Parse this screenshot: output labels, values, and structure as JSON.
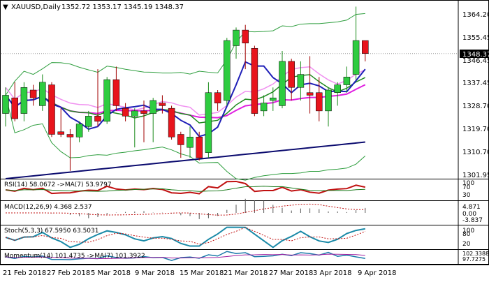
{
  "window": {
    "symbol_label": "XAUUSD,Daily",
    "ohlc_text": "1352.72 1353.17 1345.19 1348.37",
    "menu_glyph": "▼"
  },
  "main_chart": {
    "price_ticks": [
      "1364.20",
      "1355.45",
      "1346.45",
      "1337.45",
      "1328.70",
      "1319.70",
      "1310.70",
      "1301.95"
    ],
    "current_price_label": "1348.37",
    "colors": {
      "bull": "#2ecc40",
      "bear": "#e8141c",
      "ma_fast": "#1f1fb8",
      "ma_slow": "#0a0a6e",
      "bands": "#2e9e3e",
      "ma_green": "#1f8a1f",
      "ma_magenta": "#e020e0",
      "ma_pink": "#f090f0",
      "grid": "#d8d8d8"
    }
  },
  "indicators": {
    "rsi": {
      "label": "RSI(14) 58.0672 ->MA(7) 53.9797",
      "ticks": [
        "100",
        "70",
        "30"
      ]
    },
    "macd": {
      "label": "MACD(12,26,9) 4.368 2.537",
      "ticks": [
        "4.871",
        "0.00",
        "-3.837"
      ]
    },
    "stoch": {
      "label": "Stoch(5,3,3) 67.5950 63.5031",
      "ticks": [
        "100",
        "80",
        "20"
      ]
    },
    "momentum": {
      "label": "Momentum(14) 101.4735 ->MA(7) 101.3922",
      "ticks": [
        "102.3388",
        "97.7275"
      ]
    }
  },
  "time_axis": {
    "labels": [
      "21 Feb 2018",
      "27 Feb 2018",
      "5 Mar 2018",
      "9 Mar 2018",
      "15 Mar 2018",
      "21 Mar 2018",
      "27 Mar 2018",
      "3 Apr 2018",
      "9 Apr 2018"
    ]
  },
  "chart_data": {
    "type": "candlestick",
    "y_range": [
      1300,
      1368
    ],
    "candles": [
      {
        "o": 1325,
        "h": 1335,
        "l": 1320,
        "c": 1332
      },
      {
        "o": 1331,
        "h": 1337,
        "l": 1322,
        "c": 1323
      },
      {
        "o": 1325,
        "h": 1337,
        "l": 1322,
        "c": 1335
      },
      {
        "o": 1334,
        "h": 1336,
        "l": 1328,
        "c": 1331
      },
      {
        "o": 1328,
        "h": 1340,
        "l": 1326,
        "c": 1337
      },
      {
        "o": 1336,
        "h": 1337,
        "l": 1316,
        "c": 1317
      },
      {
        "o": 1318,
        "h": 1327,
        "l": 1316,
        "c": 1317
      },
      {
        "o": 1317,
        "h": 1319,
        "l": 1303,
        "c": 1316
      },
      {
        "o": 1316,
        "h": 1322,
        "l": 1314,
        "c": 1321
      },
      {
        "o": 1320,
        "h": 1326,
        "l": 1318,
        "c": 1324
      },
      {
        "o": 1324,
        "h": 1342,
        "l": 1320,
        "c": 1322
      },
      {
        "o": 1322,
        "h": 1339,
        "l": 1321,
        "c": 1338
      },
      {
        "o": 1338,
        "h": 1343,
        "l": 1326,
        "c": 1328
      },
      {
        "o": 1327,
        "h": 1329,
        "l": 1322,
        "c": 1324
      },
      {
        "o": 1324,
        "h": 1327,
        "l": 1312,
        "c": 1326
      },
      {
        "o": 1326,
        "h": 1330,
        "l": 1314,
        "c": 1325
      },
      {
        "o": 1325,
        "h": 1331,
        "l": 1314,
        "c": 1330
      },
      {
        "o": 1329,
        "h": 1332,
        "l": 1325,
        "c": 1328
      },
      {
        "o": 1327,
        "h": 1328,
        "l": 1315,
        "c": 1316
      },
      {
        "o": 1317,
        "h": 1318,
        "l": 1308,
        "c": 1313
      },
      {
        "o": 1312,
        "h": 1320,
        "l": 1308,
        "c": 1316
      },
      {
        "o": 1316,
        "h": 1318,
        "l": 1307,
        "c": 1308
      },
      {
        "o": 1310,
        "h": 1337,
        "l": 1308,
        "c": 1333
      },
      {
        "o": 1333,
        "h": 1334,
        "l": 1326,
        "c": 1329
      },
      {
        "o": 1330,
        "h": 1354,
        "l": 1328,
        "c": 1353
      },
      {
        "o": 1351,
        "h": 1358,
        "l": 1346,
        "c": 1357
      },
      {
        "o": 1357,
        "h": 1359,
        "l": 1342,
        "c": 1352
      },
      {
        "o": 1350,
        "h": 1351,
        "l": 1324,
        "c": 1325
      },
      {
        "o": 1326,
        "h": 1332,
        "l": 1324,
        "c": 1329
      },
      {
        "o": 1330,
        "h": 1335,
        "l": 1326,
        "c": 1331
      },
      {
        "o": 1328,
        "h": 1349,
        "l": 1327,
        "c": 1345
      },
      {
        "o": 1345,
        "h": 1346,
        "l": 1330,
        "c": 1335
      },
      {
        "o": 1335,
        "h": 1345,
        "l": 1330,
        "c": 1340
      },
      {
        "o": 1333,
        "h": 1347,
        "l": 1325,
        "c": 1332
      },
      {
        "o": 1333,
        "h": 1339,
        "l": 1322,
        "c": 1326
      },
      {
        "o": 1326,
        "h": 1335,
        "l": 1320,
        "c": 1334
      },
      {
        "o": 1333,
        "h": 1337,
        "l": 1328,
        "c": 1336
      },
      {
        "o": 1336,
        "h": 1343,
        "l": 1333,
        "c": 1339
      },
      {
        "o": 1340,
        "h": 1366,
        "l": 1338,
        "c": 1353
      },
      {
        "o": 1353,
        "h": 1353,
        "l": 1345,
        "c": 1348
      }
    ]
  }
}
